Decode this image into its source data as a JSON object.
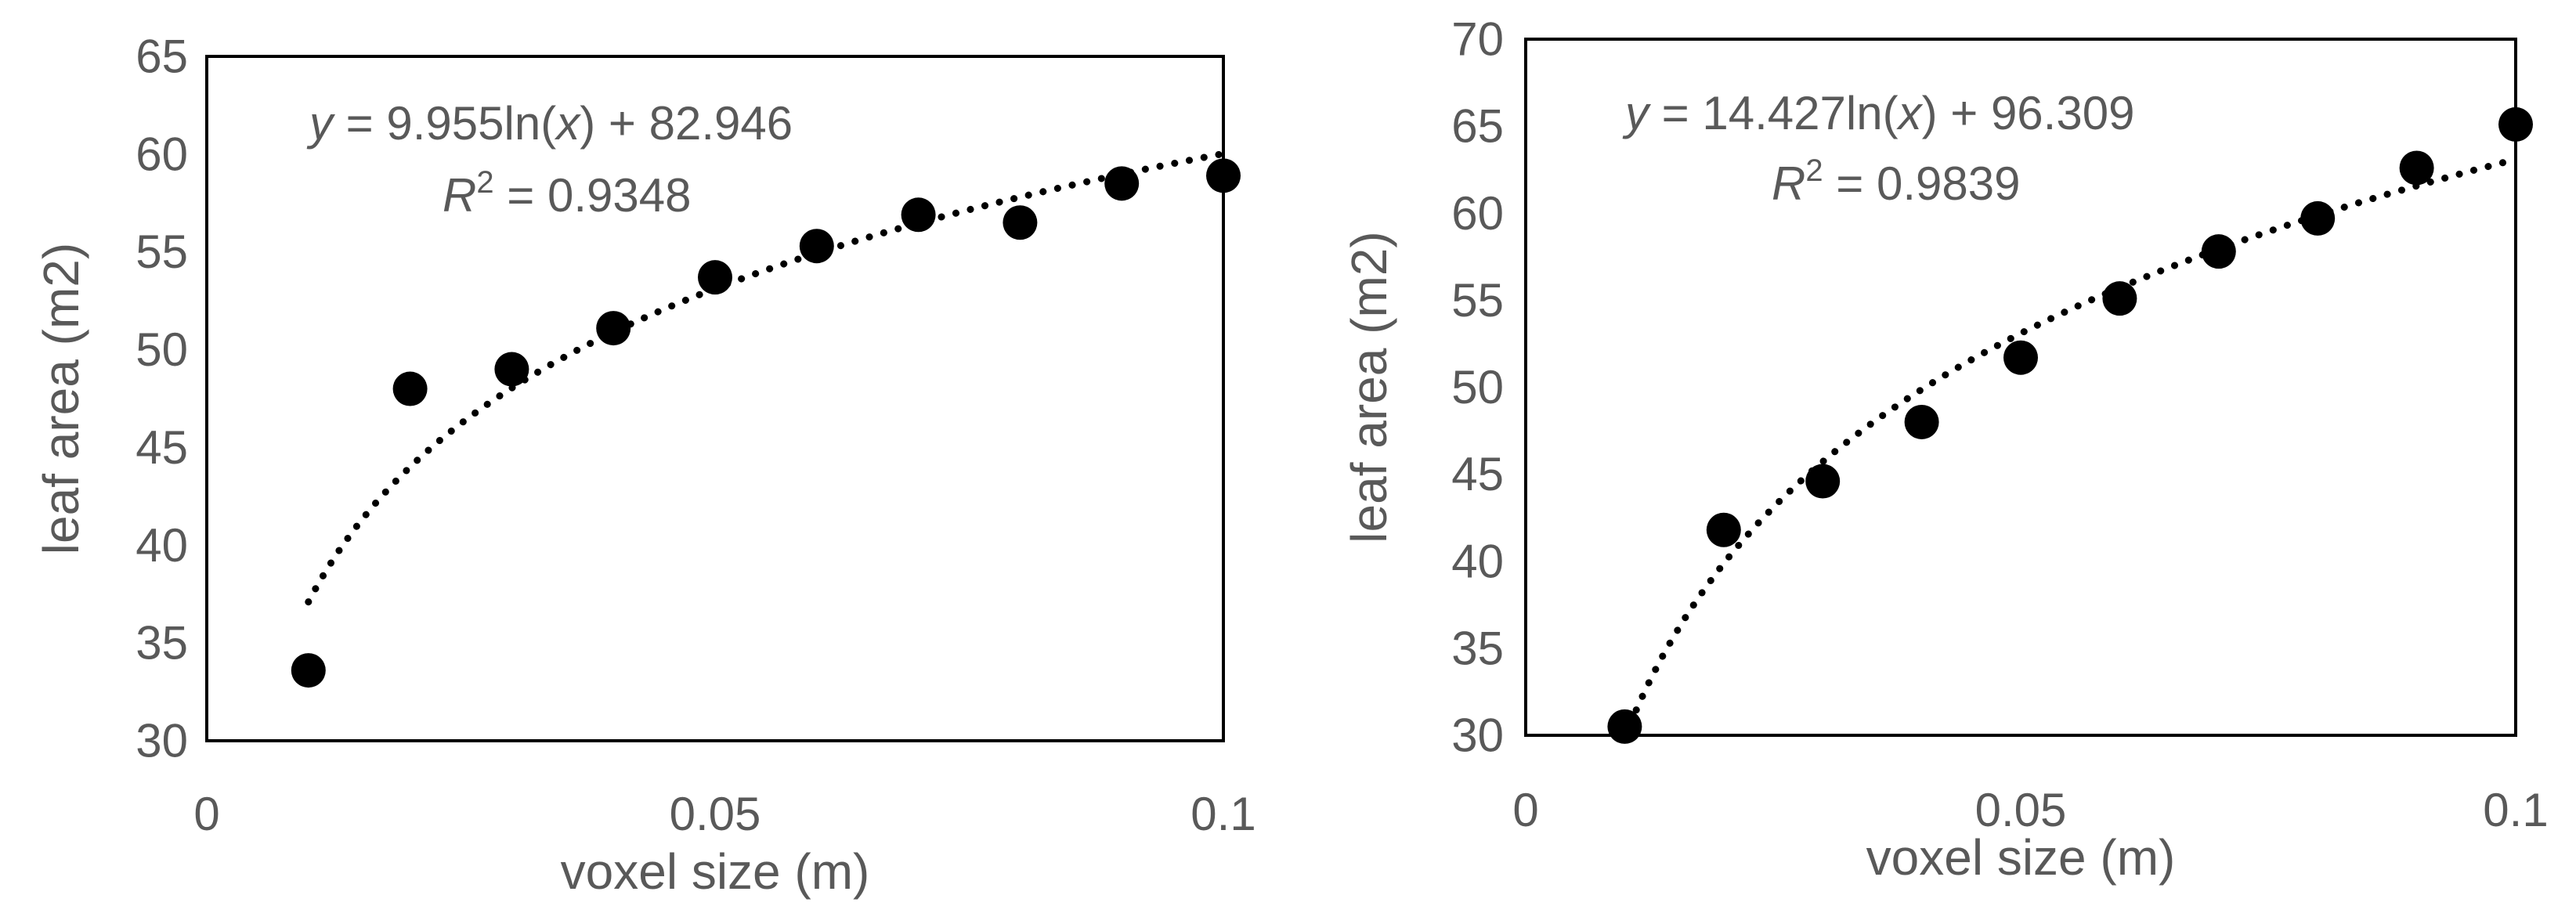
{
  "chart_data": [
    {
      "type": "scatter",
      "title": "",
      "xlabel": "voxel size (m)",
      "ylabel": "leaf area (m2)",
      "xlim": [
        0,
        0.1
      ],
      "ylim": [
        30,
        65
      ],
      "xticks": [
        0,
        0.05,
        0.1
      ],
      "xtick_labels": [
        "0",
        "0.05",
        "0.1"
      ],
      "yticks": [
        30,
        35,
        40,
        45,
        50,
        55,
        60,
        65
      ],
      "ytick_labels": [
        "30",
        "35",
        "40",
        "45",
        "50",
        "55",
        "60",
        "65"
      ],
      "grid": false,
      "legend": "none",
      "marker_color": "#000000",
      "points": {
        "x": [
          0.01,
          0.02,
          0.03,
          0.04,
          0.05,
          0.06,
          0.07,
          0.08,
          0.09,
          0.1
        ],
        "y": [
          33.6,
          48.0,
          49.0,
          51.1,
          53.7,
          55.3,
          56.9,
          56.5,
          58.5,
          58.9
        ]
      },
      "trendline": {
        "type": "logarithmic",
        "a": 9.955,
        "b": 82.946,
        "x_range": [
          0.01,
          0.1
        ],
        "equation": {
          "y_var": "y",
          "eq_pre": " = 9.955ln(",
          "x_var": "x",
          "eq_post": ") + 82.946",
          "r_var": "R",
          "r_sup": "2",
          "r_value": " = 0.9348"
        }
      }
    },
    {
      "type": "scatter",
      "title": "",
      "xlabel": "voxel size (m)",
      "ylabel": "leaf area (m2)",
      "xlim": [
        0,
        0.1
      ],
      "ylim": [
        30,
        70
      ],
      "xticks": [
        0,
        0.05,
        0.1
      ],
      "xtick_labels": [
        "0",
        "0.05",
        "0.1"
      ],
      "yticks": [
        30,
        35,
        40,
        45,
        50,
        55,
        60,
        65,
        70
      ],
      "ytick_labels": [
        "30",
        "35",
        "40",
        "45",
        "50",
        "55",
        "60",
        "65",
        "70"
      ],
      "grid": false,
      "legend": "none",
      "marker_color": "#000000",
      "points": {
        "x": [
          0.01,
          0.02,
          0.03,
          0.04,
          0.05,
          0.06,
          0.07,
          0.08,
          0.09,
          0.1
        ],
        "y": [
          30.5,
          41.8,
          44.6,
          48.0,
          51.7,
          55.1,
          57.8,
          59.7,
          62.6,
          65.1
        ]
      },
      "trendline": {
        "type": "logarithmic",
        "a": 14.427,
        "b": 96.309,
        "x_range": [
          0.01,
          0.1
        ],
        "equation": {
          "y_var": "y",
          "eq_pre": " = 14.427ln(",
          "x_var": "x",
          "eq_post": ") + 96.309",
          "r_var": "R",
          "r_sup": "2",
          "r_value": " = 0.9839"
        }
      }
    }
  ]
}
